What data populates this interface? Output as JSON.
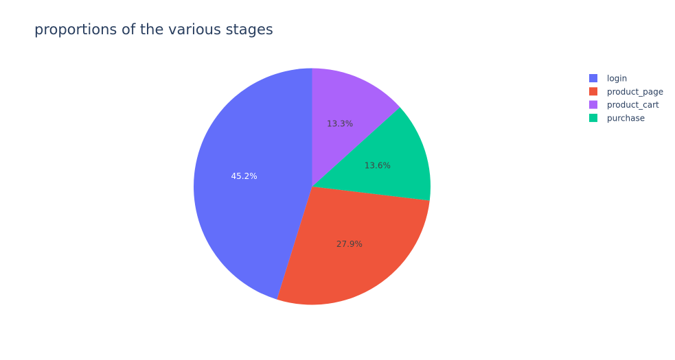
{
  "chart_data": {
    "type": "pie",
    "title": "proportions of the various stages",
    "labels": [
      "login",
      "product_page",
      "purchase",
      "product_cart"
    ],
    "values": [
      45.2,
      27.9,
      13.6,
      13.3
    ],
    "slice_labels": [
      "45.2%",
      "27.9%",
      "13.6%",
      "13.3%"
    ],
    "legend": {
      "placement": "top-right",
      "entries": [
        "login",
        "product_page",
        "product_cart",
        "purchase"
      ]
    },
    "colors": {
      "login": "#636efa",
      "product_page": "#ef553b",
      "purchase": "#00cc96",
      "product_cart": "#ab63fa"
    },
    "slice_label_colors": {
      "login": "#ffffff",
      "product_page": "#444444",
      "purchase": "#444444",
      "product_cart": "#444444"
    },
    "direction": "counterclockwise",
    "start_angle_deg": 0
  }
}
